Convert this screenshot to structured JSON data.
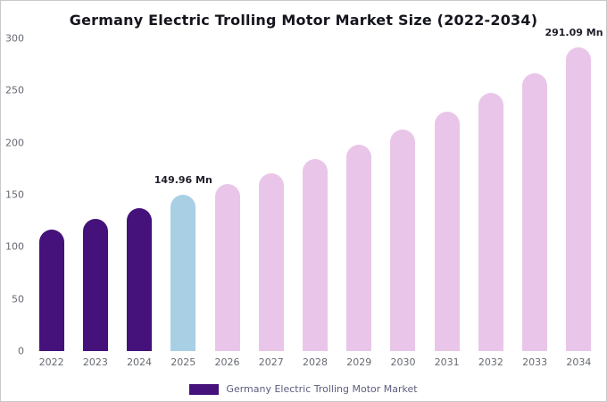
{
  "title": "Germany Electric Trolling Motor Market Size (2022-2034)",
  "chart_data": {
    "type": "bar",
    "title": "Germany Electric Trolling Motor Market Size (2022-2034)",
    "categories": [
      "2022",
      "2023",
      "2024",
      "2025",
      "2026",
      "2027",
      "2028",
      "2029",
      "2030",
      "2031",
      "2032",
      "2033",
      "2034"
    ],
    "values": [
      117,
      127,
      137,
      149.96,
      160,
      171,
      184,
      198,
      213,
      230,
      248,
      267,
      291.09
    ],
    "unit": "Mn",
    "xlabel": "",
    "ylabel": "",
    "ylim": [
      0,
      300
    ],
    "yticks": [
      0,
      50,
      100,
      150,
      200,
      250,
      300
    ],
    "grid": false,
    "legend_position": "bottom",
    "color_groups": [
      "historical",
      "historical",
      "historical",
      "current",
      "forecast",
      "forecast",
      "forecast",
      "forecast",
      "forecast",
      "forecast",
      "forecast",
      "forecast",
      "forecast"
    ],
    "colors": {
      "historical": "#44127a",
      "current": "#a9cfe4",
      "forecast": "#e9c6e9"
    },
    "annotations": [
      {
        "category": "2025",
        "text": "149.96 Mn"
      },
      {
        "category": "2034",
        "text": "291.09 Mn"
      }
    ]
  },
  "legend": {
    "label": "Germany Electric Trolling Motor Market",
    "swatch_color": "#44127a"
  }
}
